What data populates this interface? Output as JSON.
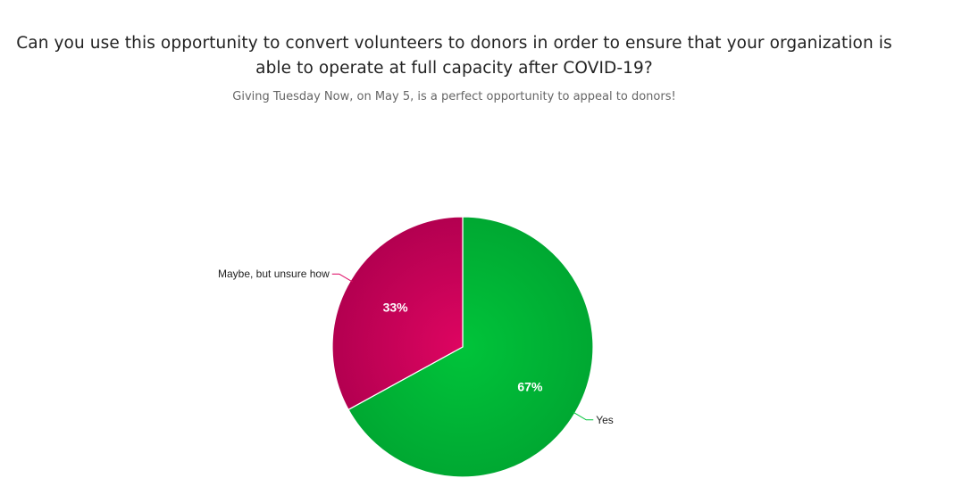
{
  "chart_data": {
    "type": "pie",
    "title": "Can you use this opportunity to convert volunteers to donors in order to ensure that your organization is able to operate at full capacity after COVID-19?",
    "subtitle": "Giving Tuesday Now, on May 5, is a perfect opportunity to appeal to donors!",
    "slices": [
      {
        "label": "Yes",
        "value": 67,
        "display": "67%",
        "color": "#00c43a",
        "color_dark": "#00a832"
      },
      {
        "label": "Maybe, but unsure how",
        "value": 33,
        "display": "33%",
        "color": "#de0561",
        "color_dark": "#b30050"
      }
    ],
    "start_angle_deg": 0,
    "direction": "clockwise",
    "legend": "none"
  }
}
